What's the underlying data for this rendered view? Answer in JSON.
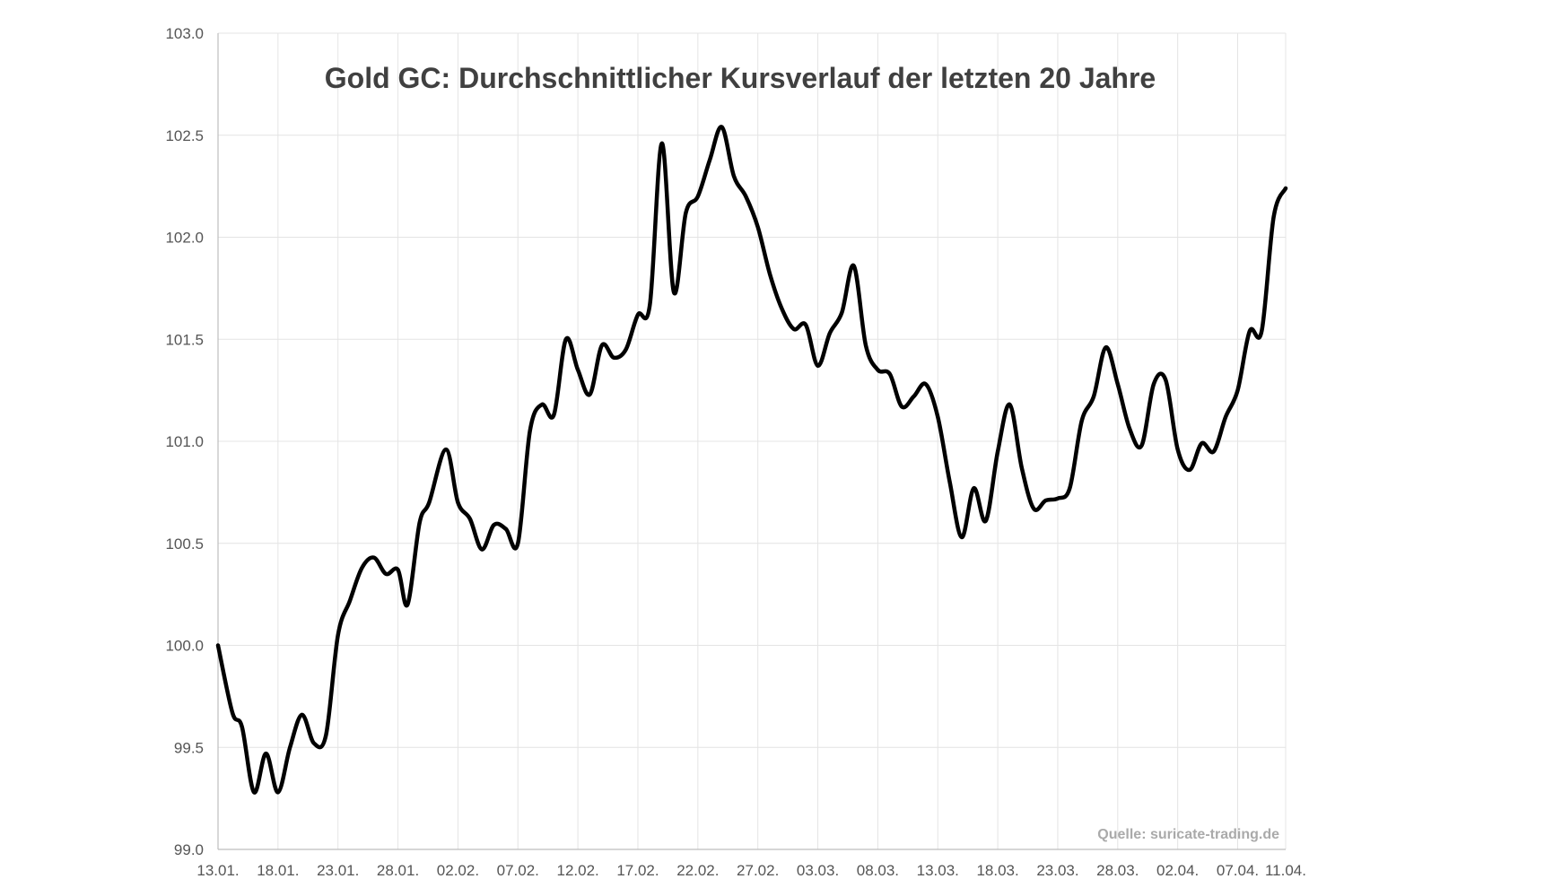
{
  "chart_data": {
    "type": "line",
    "title": "Gold GC: Durchschnittlicher Kursverlauf der letzten 20 Jahre",
    "source": "Quelle: suricate-trading.de",
    "xlabel": "",
    "ylabel": "",
    "ylim": [
      99.0,
      103.0
    ],
    "yticks": [
      "99.0",
      "99.5",
      "100.0",
      "100.5",
      "101.0",
      "101.5",
      "102.0",
      "102.5",
      "103.0"
    ],
    "xticks": [
      "13.01.",
      "18.01.",
      "23.01.",
      "28.01.",
      "02.02.",
      "07.02.",
      "12.02.",
      "17.02.",
      "22.02.",
      "27.02.",
      "03.03.",
      "08.03.",
      "13.03.",
      "18.03.",
      "23.03.",
      "28.03.",
      "02.04.",
      "07.04.",
      "11.04."
    ],
    "xtick_days": [
      0,
      5,
      10,
      15,
      20,
      25,
      30,
      35,
      40,
      45,
      50,
      55,
      60,
      65,
      70,
      75,
      80,
      85,
      89
    ],
    "x_day_max": 89,
    "grid": true,
    "series": [
      {
        "name": "Gold GC",
        "color": "#000000",
        "points": [
          [
            0,
            100.0
          ],
          [
            1.2,
            99.67
          ],
          [
            2,
            99.6
          ],
          [
            3,
            99.28
          ],
          [
            4,
            99.47
          ],
          [
            5,
            99.28
          ],
          [
            6,
            99.5
          ],
          [
            7,
            99.66
          ],
          [
            8,
            99.52
          ],
          [
            9,
            99.56
          ],
          [
            10,
            100.05
          ],
          [
            11,
            100.22
          ],
          [
            12,
            100.38
          ],
          [
            13,
            100.43
          ],
          [
            14,
            100.35
          ],
          [
            15,
            100.37
          ],
          [
            15.8,
            100.2
          ],
          [
            16.8,
            100.6
          ],
          [
            17.6,
            100.7
          ],
          [
            19,
            100.96
          ],
          [
            20,
            100.7
          ],
          [
            21,
            100.62
          ],
          [
            22,
            100.47
          ],
          [
            23,
            100.59
          ],
          [
            24,
            100.57
          ],
          [
            25,
            100.5
          ],
          [
            26,
            101.05
          ],
          [
            27,
            101.18
          ],
          [
            28,
            101.13
          ],
          [
            29,
            101.5
          ],
          [
            30,
            101.35
          ],
          [
            31,
            101.23
          ],
          [
            32,
            101.47
          ],
          [
            33,
            101.41
          ],
          [
            34,
            101.45
          ],
          [
            35,
            101.62
          ],
          [
            36,
            101.67
          ],
          [
            37,
            102.46
          ],
          [
            38,
            101.73
          ],
          [
            39,
            102.12
          ],
          [
            40,
            102.2
          ],
          [
            41,
            102.38
          ],
          [
            42,
            102.54
          ],
          [
            43,
            102.3
          ],
          [
            44,
            102.2
          ],
          [
            45,
            102.05
          ],
          [
            46,
            101.82
          ],
          [
            47,
            101.65
          ],
          [
            48,
            101.55
          ],
          [
            49,
            101.57
          ],
          [
            50,
            101.37
          ],
          [
            51,
            101.53
          ],
          [
            52,
            101.63
          ],
          [
            53,
            101.86
          ],
          [
            54,
            101.47
          ],
          [
            55,
            101.35
          ],
          [
            56,
            101.33
          ],
          [
            57,
            101.17
          ],
          [
            58,
            101.22
          ],
          [
            59,
            101.28
          ],
          [
            60,
            101.12
          ],
          [
            61,
            100.8
          ],
          [
            62,
            100.53
          ],
          [
            63,
            100.77
          ],
          [
            64,
            100.61
          ],
          [
            65,
            100.95
          ],
          [
            66,
            101.18
          ],
          [
            67,
            100.87
          ],
          [
            68,
            100.67
          ],
          [
            69,
            100.71
          ],
          [
            70,
            100.72
          ],
          [
            71,
            100.77
          ],
          [
            72,
            101.1
          ],
          [
            73,
            101.22
          ],
          [
            74,
            101.46
          ],
          [
            75,
            101.28
          ],
          [
            76,
            101.06
          ],
          [
            77,
            100.98
          ],
          [
            78,
            101.28
          ],
          [
            79,
            101.3
          ],
          [
            80,
            100.96
          ],
          [
            81,
            100.86
          ],
          [
            82,
            100.99
          ],
          [
            83,
            100.95
          ],
          [
            84,
            101.12
          ],
          [
            85,
            101.25
          ],
          [
            86,
            101.54
          ],
          [
            87,
            101.54
          ],
          [
            88,
            102.1
          ],
          [
            89,
            102.24
          ]
        ]
      }
    ]
  }
}
